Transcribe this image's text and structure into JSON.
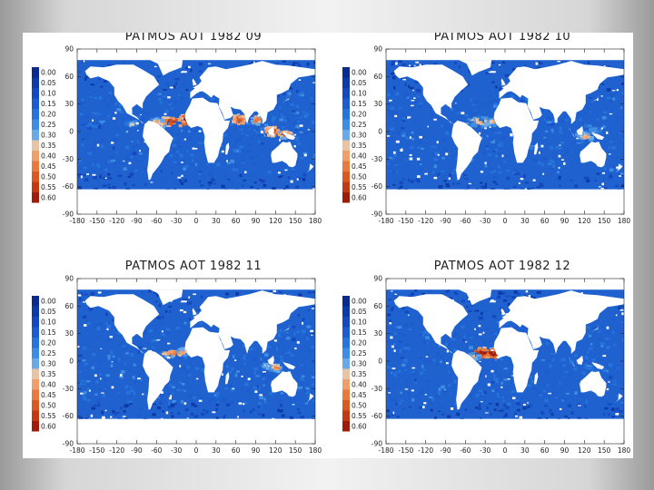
{
  "slide": {
    "background": "#d8d8d8",
    "sheet_color": "#ffffff"
  },
  "colorbar": {
    "labels": [
      "0.00",
      "0.05",
      "0.10",
      "0.15",
      "0.20",
      "0.25",
      "0.30",
      "0.35",
      "0.40",
      "0.45",
      "0.50",
      "0.55",
      "0.60"
    ],
    "colors": [
      "#0a2a8c",
      "#0e3aa6",
      "#1548bf",
      "#1c5ccf",
      "#2673d9",
      "#3e8de2",
      "#6aa9e8",
      "#e8c3a4",
      "#ee9f6c",
      "#e77a3f",
      "#d85a22",
      "#c23a12",
      "#9e1d0a"
    ]
  },
  "panel_axes": {
    "x_ticks": [
      "-180",
      "-150",
      "-120",
      "-90",
      "-60",
      "-30",
      "0",
      "30",
      "60",
      "90",
      "120",
      "150",
      "180"
    ],
    "y_ticks": [
      "90",
      "60",
      "30",
      "0",
      "-30",
      "-60",
      "-90"
    ]
  },
  "chart_data": [
    {
      "type": "heatmap",
      "title": "PATMOS AOT 1982 09",
      "variable": "AOT",
      "xlim": [
        -180,
        180
      ],
      "ylim": [
        -90,
        90
      ],
      "colorbar_range": [
        0.0,
        0.6
      ],
      "high_aot_regions": [
        "tropical North Atlantic (Saharan dust)",
        "Arabian Sea",
        "Bay of Bengal",
        "Indonesia / western Pacific"
      ]
    },
    {
      "type": "heatmap",
      "title": "PATMOS AOT 1982 10",
      "variable": "AOT",
      "xlim": [
        -180,
        180
      ],
      "ylim": [
        -90,
        90
      ],
      "colorbar_range": [
        0.0,
        0.6
      ],
      "high_aot_regions": [
        "tropical North Atlantic",
        "Indonesia / western Pacific"
      ]
    },
    {
      "type": "heatmap",
      "title": "PATMOS AOT 1982 11",
      "variable": "AOT",
      "xlim": [
        -180,
        180
      ],
      "ylim": [
        -90,
        90
      ],
      "colorbar_range": [
        0.0,
        0.6
      ],
      "high_aot_regions": [
        "tropical North Atlantic",
        "Indonesia"
      ]
    },
    {
      "type": "heatmap",
      "title": "PATMOS AOT 1982 12",
      "variable": "AOT",
      "xlim": [
        -180,
        180
      ],
      "ylim": [
        -90,
        90
      ],
      "colorbar_range": [
        0.0,
        0.6
      ],
      "high_aot_regions": [
        "tropical North Atlantic (west of Africa)"
      ]
    }
  ]
}
